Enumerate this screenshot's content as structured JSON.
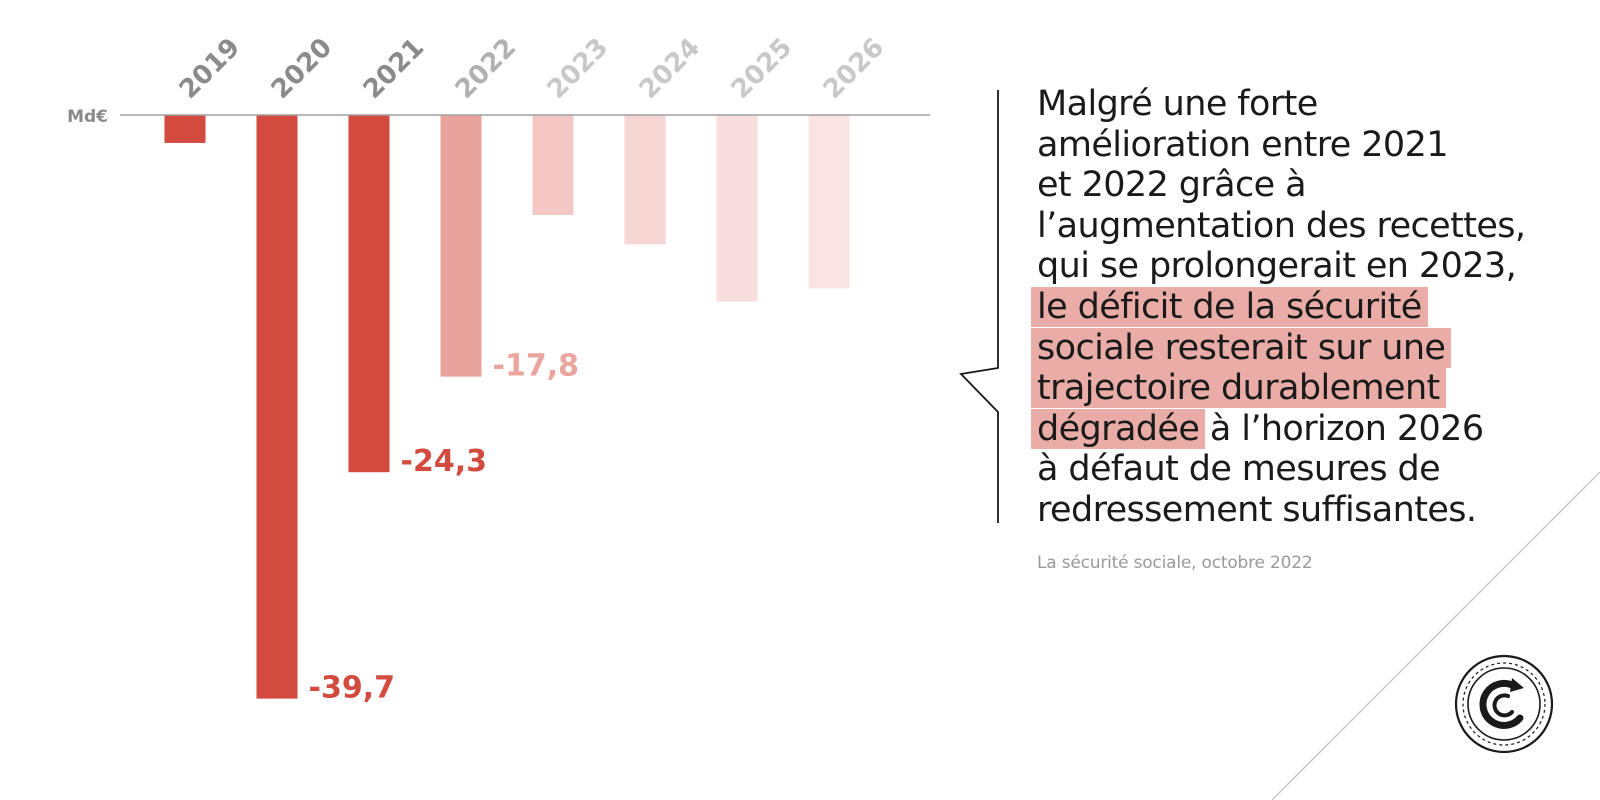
{
  "chart_data": {
    "type": "bar",
    "ylabel": "Md€",
    "categories": [
      "2019",
      "2020",
      "2021",
      "2022",
      "2023",
      "2024",
      "2025",
      "2026"
    ],
    "values": [
      -1.9,
      -39.7,
      -24.3,
      -17.8,
      -6.8,
      -8.8,
      -12.7,
      -11.8
    ],
    "labels": [
      "",
      "-39,7",
      "-24,3",
      "-17,8",
      "",
      "",
      "",
      ""
    ],
    "ylim": [
      -40,
      0
    ],
    "colors": [
      "#d34a3e",
      "#d34a3e",
      "#d34a3e",
      "#e8a39c",
      "#f3c8c4",
      "#f6d5d2",
      "#f8dfdd",
      "#f9e4e2"
    ],
    "label_colors": [
      "#d34a3e",
      "#d34a3e",
      "#d34a3e",
      "#eaa59e",
      "",
      "",
      "",
      ""
    ],
    "tick_colors": [
      "#8a8a8a",
      "#8a8a8a",
      "#8a8a8a",
      "#b0b0b0",
      "#c8c8c8",
      "#c8c8c8",
      "#c8c8c8",
      "#c8c8c8"
    ]
  },
  "quote": {
    "line1": "Malgré une forte",
    "line2": "amélioration entre 2021",
    "line3": "et 2022 grâce à",
    "line4": "l’augmentation des recettes,",
    "line5": "qui se prolongerait en 2023,",
    "line6_hl": "le déficit de la sécurité",
    "line7_hl": "sociale resterait sur une",
    "line8_hl": "trajectoire durablement",
    "line9_hl": "dégradée",
    "line9_rest": " à l’horizon 2026",
    "line10": "à défaut de mesures de",
    "line11": "redressement suffisantes."
  },
  "source": "La sécurité sociale, octobre 2022",
  "logo": {
    "icon": "cour-des-comptes-logo-icon"
  }
}
